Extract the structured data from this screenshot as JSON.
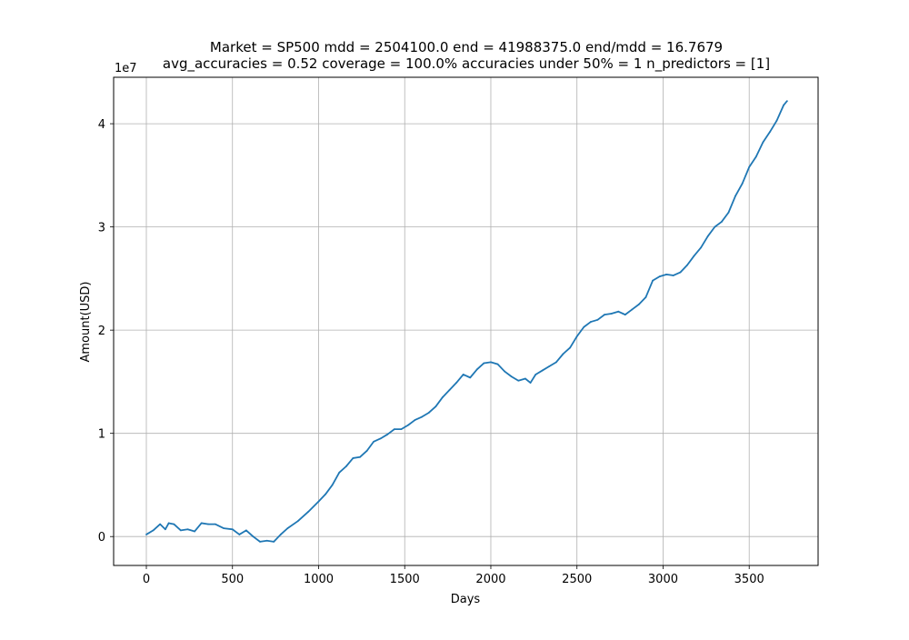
{
  "chart_data": {
    "type": "line",
    "title_line1": "Market = SP500 mdd = 2504100.0 end = 41988375.0 end/mdd = 16.7679",
    "title_line2": "avg_accuracies = 0.52 coverage = 100.0%  accuracies under 50% = 1 n_predictors = [1]",
    "xlabel": "Days",
    "ylabel": "Amount(USD)",
    "y_offset_label": "1e7",
    "y_scale": 10000000,
    "xlim": [
      -190,
      3900
    ],
    "ylim": [
      -2800000,
      44500000
    ],
    "xticks": [
      0,
      500,
      1000,
      1500,
      2000,
      2500,
      3000,
      3500
    ],
    "xtick_labels": [
      "0",
      "500",
      "1000",
      "1500",
      "2000",
      "2500",
      "3000",
      "3500"
    ],
    "yticks": [
      0,
      10000000,
      20000000,
      30000000,
      40000000
    ],
    "ytick_labels": [
      "0",
      "1",
      "2",
      "3",
      "4"
    ],
    "grid": true,
    "line_color": "#1f77b4",
    "series": [
      {
        "name": "Amount",
        "x": [
          0,
          40,
          80,
          110,
          130,
          160,
          200,
          240,
          280,
          320,
          360,
          400,
          450,
          500,
          540,
          580,
          620,
          660,
          700,
          740,
          780,
          820,
          880,
          940,
          1000,
          1040,
          1080,
          1120,
          1160,
          1200,
          1240,
          1280,
          1320,
          1360,
          1400,
          1440,
          1480,
          1520,
          1560,
          1600,
          1640,
          1680,
          1720,
          1760,
          1800,
          1840,
          1880,
          1920,
          1960,
          2000,
          2040,
          2080,
          2120,
          2160,
          2200,
          2230,
          2260,
          2300,
          2340,
          2380,
          2420,
          2460,
          2500,
          2540,
          2580,
          2620,
          2660,
          2700,
          2740,
          2780,
          2820,
          2860,
          2900,
          2940,
          2980,
          3020,
          3060,
          3100,
          3140,
          3180,
          3220,
          3260,
          3300,
          3340,
          3380,
          3420,
          3460,
          3500,
          3540,
          3580,
          3620,
          3660,
          3700,
          3720
        ],
        "values": [
          200000,
          600000,
          1200000,
          700000,
          1300000,
          1200000,
          600000,
          700000,
          500000,
          1300000,
          1200000,
          1200000,
          800000,
          700000,
          200000,
          600000,
          0,
          -500000,
          -400000,
          -500000,
          200000,
          800000,
          1500000,
          2400000,
          3400000,
          4100000,
          5000000,
          6200000,
          6800000,
          7600000,
          7700000,
          8300000,
          9200000,
          9500000,
          9900000,
          10400000,
          10400000,
          10800000,
          11300000,
          11600000,
          12000000,
          12600000,
          13500000,
          14200000,
          14900000,
          15700000,
          15400000,
          16200000,
          16800000,
          16900000,
          16700000,
          16000000,
          15500000,
          15100000,
          15300000,
          14900000,
          15700000,
          16100000,
          16500000,
          16900000,
          17700000,
          18300000,
          19400000,
          20300000,
          20800000,
          21000000,
          21500000,
          21600000,
          21800000,
          21500000,
          22000000,
          22500000,
          23200000,
          24800000,
          25200000,
          25400000,
          25300000,
          25600000,
          26300000,
          27200000,
          28000000,
          29100000,
          30000000,
          30500000,
          31400000,
          33000000,
          34200000,
          35800000,
          36800000,
          38200000,
          39200000,
          40300000,
          41800000,
          42200000
        ]
      }
    ]
  }
}
